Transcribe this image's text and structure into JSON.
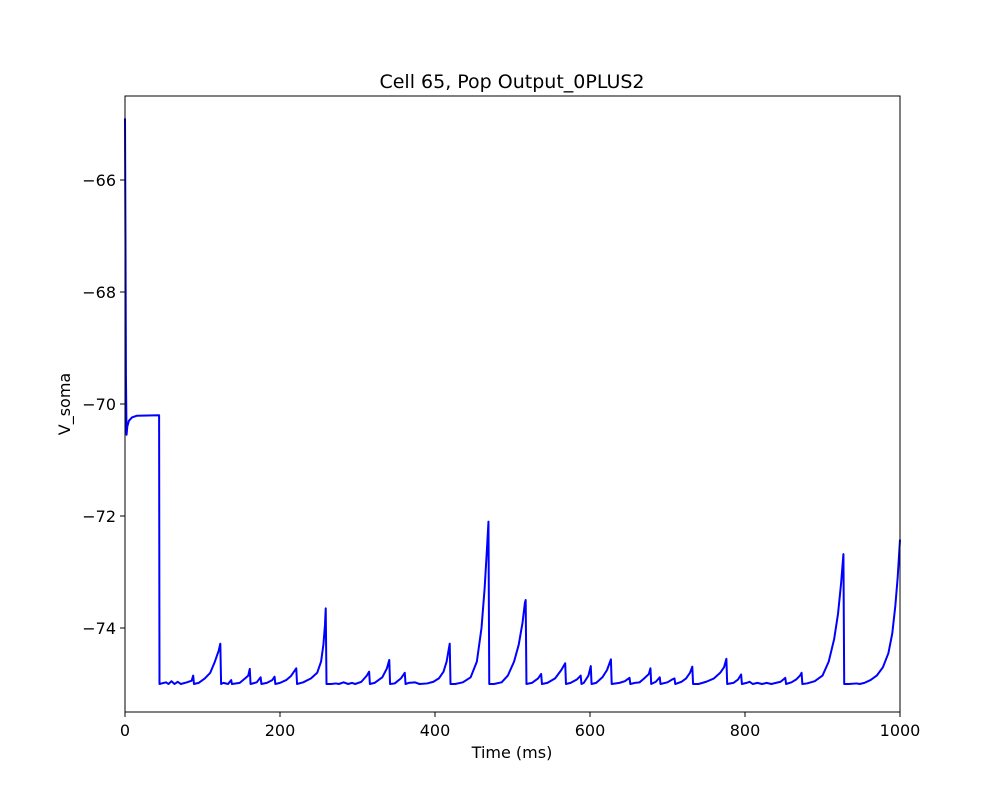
{
  "chart_data": {
    "type": "line",
    "title": "Cell 65, Pop Output_0PLUS2",
    "xlabel": "Time (ms)",
    "ylabel": "V_soma",
    "xlim": [
      0,
      1000
    ],
    "ylim": [
      -75.5,
      -64.5
    ],
    "x_ticks": [
      0,
      200,
      400,
      600,
      800,
      1000
    ],
    "x_tick_labels": [
      "0",
      "200",
      "400",
      "600",
      "800",
      "1000"
    ],
    "y_ticks": [
      -74,
      -72,
      -70,
      -68,
      -66
    ],
    "y_tick_labels": [
      "−74",
      "−72",
      "−70",
      "−68",
      "−66"
    ],
    "grid": false,
    "legend": "none",
    "series": [
      {
        "color": "#0000ff",
        "points": [
          [
            0,
            -64.9
          ],
          [
            0.6,
            -67.0
          ],
          [
            1.2,
            -69.5
          ],
          [
            2,
            -70.55
          ],
          [
            3,
            -70.4
          ],
          [
            5,
            -70.3
          ],
          [
            9,
            -70.24
          ],
          [
            15,
            -70.21
          ],
          [
            44,
            -70.2
          ],
          [
            44.5,
            -75.0
          ],
          [
            53,
            -74.97
          ],
          [
            56,
            -75.0
          ],
          [
            60,
            -74.95
          ],
          [
            64,
            -75.0
          ],
          [
            68,
            -74.96
          ],
          [
            72,
            -75.0
          ],
          [
            80,
            -74.97
          ],
          [
            86,
            -74.94
          ],
          [
            88,
            -74.85
          ],
          [
            89,
            -75.0
          ],
          [
            95,
            -74.98
          ],
          [
            103,
            -74.9
          ],
          [
            110,
            -74.8
          ],
          [
            116,
            -74.6
          ],
          [
            121,
            -74.4
          ],
          [
            123,
            -74.28
          ],
          [
            124,
            -75.0
          ],
          [
            127,
            -74.98
          ],
          [
            133,
            -75.0
          ],
          [
            137,
            -74.93
          ],
          [
            138,
            -75.0
          ],
          [
            148,
            -74.98
          ],
          [
            155,
            -74.9
          ],
          [
            159,
            -74.85
          ],
          [
            161,
            -74.73
          ],
          [
            162,
            -75.0
          ],
          [
            170,
            -74.97
          ],
          [
            175,
            -74.88
          ],
          [
            176,
            -75.0
          ],
          [
            183,
            -74.98
          ],
          [
            190,
            -74.93
          ],
          [
            193,
            -74.87
          ],
          [
            194,
            -75.0
          ],
          [
            200,
            -74.98
          ],
          [
            208,
            -74.93
          ],
          [
            214,
            -74.86
          ],
          [
            219,
            -74.76
          ],
          [
            221,
            -74.72
          ],
          [
            222,
            -75.0
          ],
          [
            230,
            -74.97
          ],
          [
            240,
            -74.9
          ],
          [
            248,
            -74.8
          ],
          [
            253,
            -74.6
          ],
          [
            256,
            -74.3
          ],
          [
            258,
            -73.95
          ],
          [
            259,
            -73.65
          ],
          [
            260,
            -75.0
          ],
          [
            266,
            -75.0
          ],
          [
            272,
            -74.99
          ],
          [
            276,
            -75.0
          ],
          [
            282,
            -74.97
          ],
          [
            288,
            -75.0
          ],
          [
            293,
            -74.98
          ],
          [
            297,
            -75.0
          ],
          [
            305,
            -74.96
          ],
          [
            312,
            -74.85
          ],
          [
            315,
            -74.78
          ],
          [
            316,
            -75.0
          ],
          [
            322,
            -74.98
          ],
          [
            332,
            -74.88
          ],
          [
            338,
            -74.72
          ],
          [
            341,
            -74.57
          ],
          [
            342,
            -75.0
          ],
          [
            348,
            -74.99
          ],
          [
            356,
            -74.9
          ],
          [
            361,
            -74.8
          ],
          [
            362,
            -75.0
          ],
          [
            366,
            -74.98
          ],
          [
            374,
            -74.97
          ],
          [
            380,
            -75.0
          ],
          [
            390,
            -74.99
          ],
          [
            398,
            -74.96
          ],
          [
            405,
            -74.9
          ],
          [
            411,
            -74.78
          ],
          [
            415,
            -74.6
          ],
          [
            419,
            -74.28
          ],
          [
            420,
            -75.0
          ],
          [
            426,
            -75.0
          ],
          [
            436,
            -74.97
          ],
          [
            446,
            -74.88
          ],
          [
            454,
            -74.6
          ],
          [
            460,
            -74.0
          ],
          [
            464,
            -73.3
          ],
          [
            467,
            -72.6
          ],
          [
            469,
            -72.1
          ],
          [
            470,
            -75.0
          ],
          [
            476,
            -75.0
          ],
          [
            486,
            -74.97
          ],
          [
            494,
            -74.85
          ],
          [
            502,
            -74.6
          ],
          [
            508,
            -74.3
          ],
          [
            513,
            -73.9
          ],
          [
            516,
            -73.55
          ],
          [
            517,
            -73.5
          ],
          [
            518,
            -75.0
          ],
          [
            525,
            -74.98
          ],
          [
            533,
            -74.9
          ],
          [
            537,
            -74.82
          ],
          [
            538,
            -75.0
          ],
          [
            545,
            -74.98
          ],
          [
            555,
            -74.9
          ],
          [
            563,
            -74.75
          ],
          [
            568,
            -74.63
          ],
          [
            569,
            -75.0
          ],
          [
            575,
            -74.98
          ],
          [
            583,
            -74.92
          ],
          [
            588,
            -74.85
          ],
          [
            589,
            -75.0
          ],
          [
            592,
            -74.98
          ],
          [
            598,
            -74.85
          ],
          [
            601,
            -74.68
          ],
          [
            602,
            -75.0
          ],
          [
            608,
            -74.98
          ],
          [
            616,
            -74.88
          ],
          [
            622,
            -74.75
          ],
          [
            627,
            -74.56
          ],
          [
            628,
            -75.0
          ],
          [
            638,
            -74.98
          ],
          [
            645,
            -74.95
          ],
          [
            651,
            -74.89
          ],
          [
            652,
            -75.0
          ],
          [
            658,
            -74.98
          ],
          [
            664,
            -74.97
          ],
          [
            670,
            -74.9
          ],
          [
            676,
            -74.82
          ],
          [
            678,
            -74.72
          ],
          [
            679,
            -75.0
          ],
          [
            685,
            -74.96
          ],
          [
            690,
            -74.88
          ],
          [
            691,
            -75.0
          ],
          [
            700,
            -74.97
          ],
          [
            706,
            -74.92
          ],
          [
            709,
            -74.9
          ],
          [
            710,
            -75.0
          ],
          [
            718,
            -74.96
          ],
          [
            724,
            -74.9
          ],
          [
            729,
            -74.8
          ],
          [
            732,
            -74.69
          ],
          [
            733,
            -75.0
          ],
          [
            740,
            -75.0
          ],
          [
            750,
            -74.96
          ],
          [
            760,
            -74.9
          ],
          [
            768,
            -74.8
          ],
          [
            773,
            -74.7
          ],
          [
            776,
            -74.55
          ],
          [
            777,
            -75.0
          ],
          [
            785,
            -74.98
          ],
          [
            791,
            -74.92
          ],
          [
            795,
            -74.83
          ],
          [
            796,
            -75.0
          ],
          [
            802,
            -74.98
          ],
          [
            806,
            -74.96
          ],
          [
            810,
            -75.0
          ],
          [
            816,
            -74.98
          ],
          [
            822,
            -75.0
          ],
          [
            828,
            -74.98
          ],
          [
            834,
            -75.0
          ],
          [
            840,
            -74.98
          ],
          [
            846,
            -74.96
          ],
          [
            852,
            -74.89
          ],
          [
            853,
            -75.0
          ],
          [
            860,
            -74.97
          ],
          [
            866,
            -74.92
          ],
          [
            871,
            -74.85
          ],
          [
            873,
            -74.8
          ],
          [
            874,
            -75.0
          ],
          [
            880,
            -74.99
          ],
          [
            890,
            -74.95
          ],
          [
            900,
            -74.85
          ],
          [
            908,
            -74.6
          ],
          [
            915,
            -74.2
          ],
          [
            920,
            -73.75
          ],
          [
            924,
            -73.2
          ],
          [
            927,
            -72.68
          ],
          [
            928,
            -75.0
          ],
          [
            934,
            -75.0
          ],
          [
            944,
            -74.99
          ],
          [
            948,
            -75.0
          ],
          [
            954,
            -74.98
          ],
          [
            962,
            -74.93
          ],
          [
            970,
            -74.85
          ],
          [
            978,
            -74.7
          ],
          [
            985,
            -74.45
          ],
          [
            990,
            -74.1
          ],
          [
            994,
            -73.6
          ],
          [
            997,
            -73.1
          ],
          [
            1000,
            -72.42
          ]
        ]
      }
    ]
  }
}
